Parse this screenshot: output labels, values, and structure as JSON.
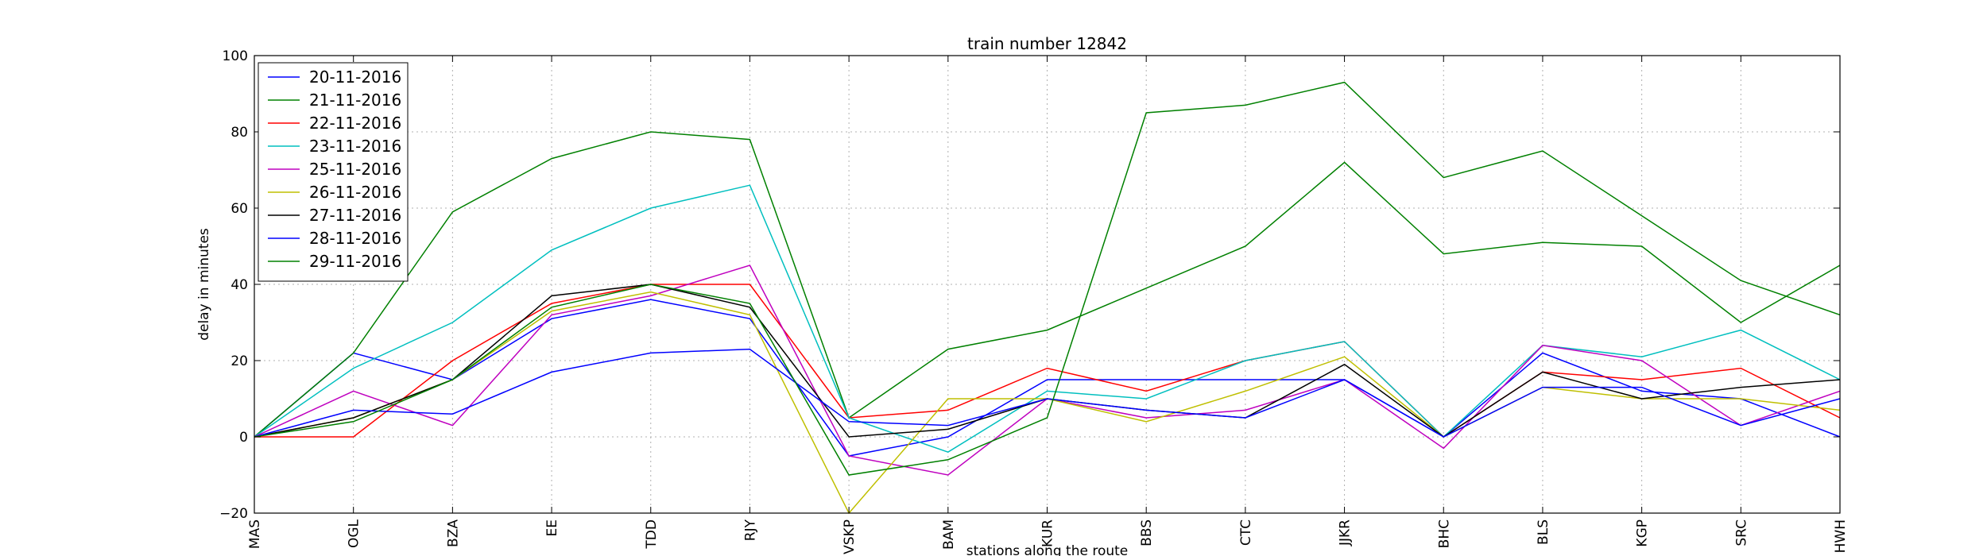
{
  "chart_data": {
    "type": "line",
    "title": "train number 12842",
    "xlabel": "stations along the route",
    "ylabel": "delay in minutes",
    "ylim": [
      -20,
      100
    ],
    "yticks": [
      -20,
      0,
      20,
      40,
      60,
      80,
      100
    ],
    "grid": true,
    "legend_position": "top-left",
    "categories": [
      "MAS",
      "OGL",
      "BZA",
      "EE",
      "TDD",
      "RJY",
      "VSKP",
      "BAM",
      "KUR",
      "BBS",
      "CTC",
      "JJKR",
      "BHC",
      "BLS",
      "KGP",
      "SRC",
      "HWH"
    ],
    "series": [
      {
        "name": "20-11-2016",
        "color": "#0000ff",
        "values": [
          0,
          22,
          15,
          31,
          36,
          31,
          -5,
          0,
          15,
          15,
          15,
          15,
          0,
          22,
          12,
          10,
          0
        ]
      },
      {
        "name": "21-11-2016",
        "color": "#008000",
        "values": [
          0,
          22,
          59,
          73,
          80,
          78,
          5,
          23,
          28,
          39,
          50,
          72,
          48,
          51,
          50,
          30,
          45
        ]
      },
      {
        "name": "22-11-2016",
        "color": "#ff0000",
        "values": [
          0,
          0,
          20,
          35,
          40,
          40,
          5,
          7,
          18,
          12,
          20,
          25,
          0,
          17,
          15,
          18,
          5
        ]
      },
      {
        "name": "23-11-2016",
        "color": "#00bfbf",
        "values": [
          0,
          18,
          30,
          49,
          60,
          66,
          5,
          -4,
          12,
          10,
          20,
          25,
          0,
          24,
          21,
          28,
          15
        ]
      },
      {
        "name": "25-11-2016",
        "color": "#bf00bf",
        "values": [
          0,
          12,
          3,
          32,
          37,
          45,
          -5,
          -10,
          10,
          5,
          7,
          15,
          -3,
          24,
          20,
          3,
          12
        ]
      },
      {
        "name": "26-11-2016",
        "color": "#bfbf00",
        "values": [
          0,
          5,
          15,
          33,
          38,
          32,
          -20,
          10,
          10,
          4,
          12,
          21,
          0,
          13,
          10,
          10,
          7
        ]
      },
      {
        "name": "27-11-2016",
        "color": "#000000",
        "values": [
          0,
          5,
          15,
          37,
          40,
          34,
          0,
          2,
          10,
          7,
          5,
          19,
          0,
          17,
          10,
          13,
          15
        ]
      },
      {
        "name": "28-11-2016",
        "color": "#0000ff",
        "values": [
          0,
          7,
          6,
          17,
          22,
          23,
          4,
          3,
          10,
          7,
          5,
          15,
          0,
          13,
          13,
          3,
          10
        ]
      },
      {
        "name": "29-11-2016",
        "color": "#008000",
        "values": [
          0,
          4,
          15,
          34,
          40,
          35,
          -10,
          -6,
          5,
          85,
          87,
          93,
          68,
          75,
          58,
          41,
          32
        ]
      }
    ]
  }
}
